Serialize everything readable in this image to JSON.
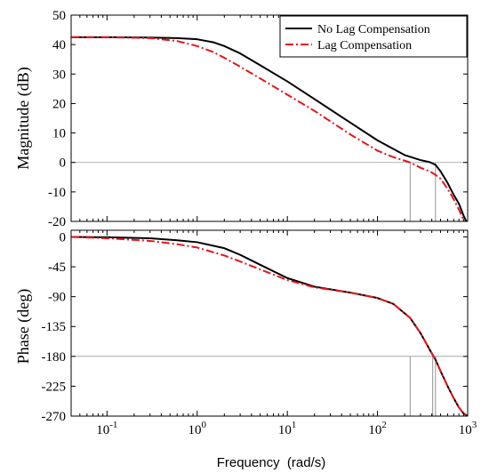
{
  "chart_data": {
    "type": "line",
    "x_scale": "log",
    "xlim": [
      0.04,
      1000
    ],
    "xlabel": "Frequency  (rad/s)",
    "x_ticks": [
      0.1,
      1,
      10,
      100,
      1000
    ],
    "x_tick_labels": [
      {
        "base": "10",
        "exp": "-1"
      },
      {
        "base": "10",
        "exp": "0"
      },
      {
        "base": "10",
        "exp": "1"
      },
      {
        "base": "10",
        "exp": "2"
      },
      {
        "base": "10",
        "exp": "3"
      }
    ],
    "legend": {
      "placement": "top-right",
      "entries": [
        {
          "label": "No Lag Compensation",
          "color": "#000000",
          "dash": "solid"
        },
        {
          "label": "Lag Compensation",
          "color": "#e8141b",
          "dash": "dash-dot"
        }
      ]
    },
    "panels": [
      {
        "id": "magnitude",
        "ylabel": "Magnitude (dB)",
        "ylim": [
          -20,
          50
        ],
        "y_ticks": [
          50,
          40,
          30,
          20,
          10,
          0,
          -10,
          -20
        ],
        "y_tick_labels": [
          "50",
          "40",
          "30",
          "20",
          "10",
          "0",
          "-10",
          "-20"
        ],
        "reference_line_y": 0,
        "series": [
          {
            "legend_index": 0,
            "x": [
              0.04,
              0.1,
              0.3,
              0.6,
              1,
              1.5,
              2,
              3,
              5,
              10,
              20,
              50,
              100,
              200,
              300,
              380,
              440,
              500,
              600,
              700,
              800,
              900,
              1000
            ],
            "y": [
              42.5,
              42.5,
              42.4,
              42.2,
              41.8,
              40.8,
              39.5,
              37,
              33,
              27.5,
              21.5,
              13.5,
              7.5,
              2.5,
              0.8,
              0.1,
              -0.8,
              -3,
              -7,
              -11,
              -14,
              -18,
              -21
            ]
          },
          {
            "legend_index": 1,
            "x": [
              0.04,
              0.1,
              0.3,
              0.6,
              1,
              1.5,
              2,
              3,
              5,
              10,
              20,
              50,
              100,
              150,
              230,
              300,
              380,
              440,
              500,
              600,
              700,
              800,
              900,
              1000
            ],
            "y": [
              42.5,
              42.5,
              42.2,
              41.2,
              39.5,
              37.5,
              35.5,
              32.5,
              28.5,
              23,
              17.5,
              9.5,
              4,
              1.8,
              0,
              -1.8,
              -3,
              -4.2,
              -5.5,
              -9,
              -12.5,
              -16,
              -19.5,
              -22
            ]
          }
        ],
        "crossover_markers_x": [
          230,
          440
        ]
      },
      {
        "id": "phase",
        "ylabel": "Phase (deg)",
        "ylim": [
          -270,
          10
        ],
        "y_ticks": [
          0,
          -45,
          -90,
          -135,
          -180,
          -225,
          -270
        ],
        "y_tick_labels": [
          "0",
          "-45",
          "-90",
          "-135",
          "-180",
          "-225",
          "-270"
        ],
        "reference_line_y": -180,
        "series": [
          {
            "legend_index": 0,
            "x": [
              0.04,
              0.1,
              0.3,
              0.6,
              1,
              2,
              3,
              5,
              10,
              20,
              50,
              100,
              150,
              230,
              300,
              380,
              440,
              500,
              600,
              700,
              800,
              900,
              1000
            ],
            "y": [
              0,
              -0.5,
              -2,
              -5,
              -8,
              -17,
              -27,
              -42,
              -62,
              -75,
              -84,
              -92,
              -101,
              -122,
              -145,
              -170,
              -185,
              -202,
              -225,
              -243,
              -257,
              -266,
              -270
            ]
          },
          {
            "legend_index": 1,
            "x": [
              0.04,
              0.1,
              0.3,
              0.6,
              1,
              2,
              3,
              5,
              10,
              20,
              50,
              100,
              150,
              230,
              300,
              380,
              440,
              500,
              600,
              700,
              800,
              900,
              1000
            ],
            "y": [
              0,
              -2,
              -6,
              -11,
              -16,
              -28,
              -37,
              -49,
              -65,
              -76,
              -84,
              -92,
              -101,
              -122,
              -145,
              -170,
              -185,
              -202,
              -225,
              -243,
              -257,
              -266,
              -270
            ]
          }
        ],
        "crossover_markers_x": [
          230,
          410,
          440
        ]
      }
    ]
  }
}
